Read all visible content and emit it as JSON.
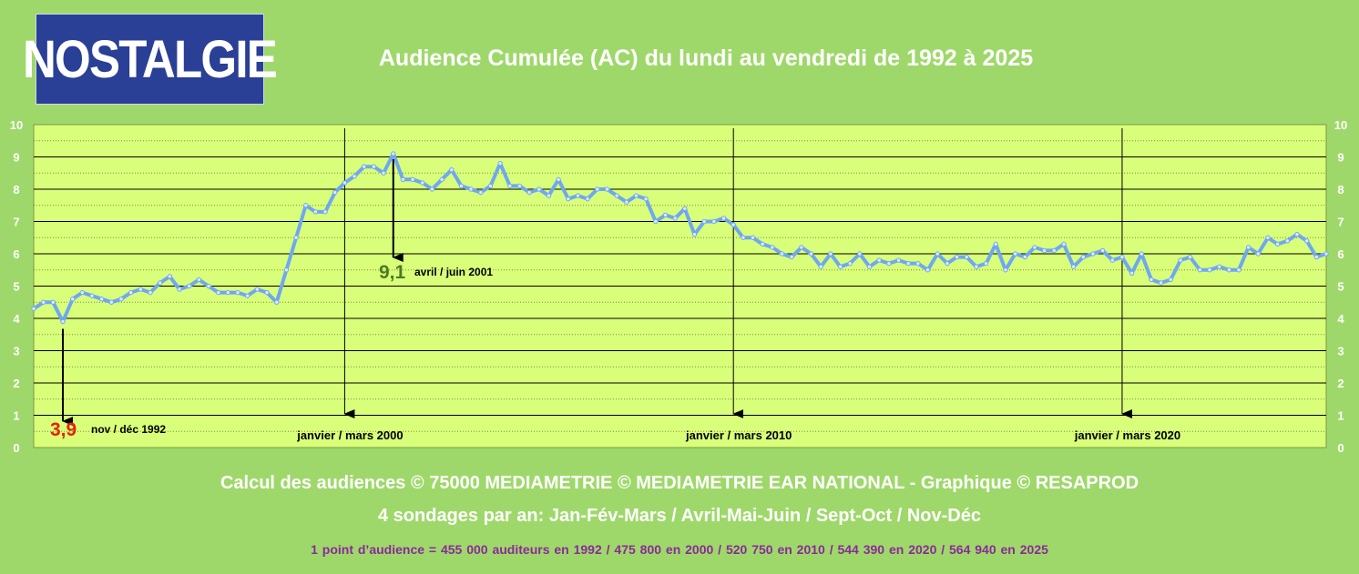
{
  "logo": {
    "text": "NOSTALGIE",
    "bg_color": "#2a3f96"
  },
  "colors": {
    "background": "#9fd86a",
    "plot_bg": "#d9ff7a",
    "line": "#6fa8f0",
    "min_value": "#e8210a",
    "max_value": "#4d7a1f",
    "footer_note": "#8a2a9a"
  },
  "footer": {
    "line1": "Calcul des audiences © 75000 MEDIAMETRIE © MEDIAMETRIE EAR NATIONAL - Graphique © RESAPROD",
    "line2": "4 sondages par an: Jan-Fév-Mars / Avril-Mai-Juin / Sept-Oct / Nov-Déc",
    "line3": "1 point d’audience = 455 000 auditeurs en 1992   /   475 800 en 2000   /   520 750 en 2010   /   544 390 en 2020   /   564 940 en 2025"
  },
  "chart_data": {
    "type": "line",
    "title": "Audience Cumulée (AC) du lundi au vendredi de 1992 à 2025",
    "ylim": [
      0,
      10
    ],
    "yticks": [
      0,
      1,
      2,
      3,
      4,
      5,
      6,
      7,
      8,
      9,
      10
    ],
    "grid": true,
    "xlabel": "",
    "ylabel": "",
    "markers": [
      {
        "label": "janvier / mars 2000",
        "index": 32
      },
      {
        "label": "janvier / mars 2010",
        "index": 72
      },
      {
        "label": "janvier / mars 2020",
        "index": 112
      }
    ],
    "annotations": [
      {
        "value_text": "3,9",
        "label": "nov / déc 1992",
        "index": 3,
        "value": 3.9
      },
      {
        "value_text": "9,1",
        "label": "avril / juin 2001",
        "index": 37,
        "value": 9.1
      }
    ],
    "series": [
      {
        "values": [
          4.3,
          4.5,
          4.5,
          3.9,
          4.6,
          4.8,
          4.7,
          4.6,
          4.5,
          4.6,
          4.8,
          4.9,
          4.8,
          5.1,
          5.3,
          4.9,
          5.0,
          5.2,
          5.0,
          4.8,
          4.8,
          4.8,
          4.7,
          4.9,
          4.8,
          4.5,
          5.5,
          6.5,
          7.5,
          7.3,
          7.3,
          7.9,
          8.2,
          8.4,
          8.7,
          8.7,
          8.5,
          9.1,
          8.3,
          8.3,
          8.2,
          8.0,
          8.3,
          8.6,
          8.1,
          8.0,
          7.9,
          8.1,
          8.8,
          8.1,
          8.1,
          7.9,
          8.0,
          7.8,
          8.3,
          7.7,
          7.8,
          7.7,
          8.0,
          8.0,
          7.8,
          7.6,
          7.8,
          7.7,
          7.0,
          7.2,
          7.1,
          7.4,
          6.6,
          7.0,
          7.0,
          7.1,
          6.9,
          6.5,
          6.5,
          6.3,
          6.2,
          6.0,
          5.9,
          6.2,
          6.0,
          5.6,
          6.0,
          5.6,
          5.7,
          6.0,
          5.6,
          5.8,
          5.7,
          5.8,
          5.7,
          5.7,
          5.5,
          6.0,
          5.7,
          5.9,
          5.9,
          5.6,
          5.7,
          6.3,
          5.5,
          6.0,
          5.9,
          6.2,
          6.1,
          6.1,
          6.3,
          5.6,
          5.9,
          6.0,
          6.1,
          5.8,
          5.9,
          5.4,
          6.0,
          5.2,
          5.1,
          5.2,
          5.8,
          5.9,
          5.5,
          5.5,
          5.6,
          5.5,
          5.5,
          6.2,
          6.0,
          6.5,
          6.3,
          6.4,
          6.6,
          6.4,
          5.9,
          6.0
        ]
      }
    ]
  }
}
